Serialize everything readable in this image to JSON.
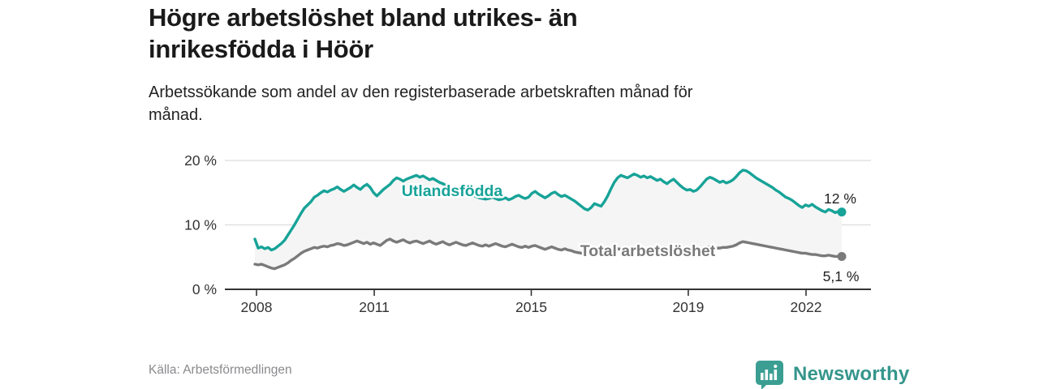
{
  "header": {
    "title_line1": "Högre arbetslöshet bland utrikes- än",
    "title_line2": "inrikesfödda i Höör",
    "subtitle_line1": "Arbetssökande som andel av den registerbaserade arbetskraften månad för",
    "subtitle_line2": "månad."
  },
  "chart_data": {
    "type": "line",
    "title": "Högre arbetslöshet bland utrikes- än inrikesfödda i Höör",
    "subtitle": "Arbetssökande som andel av den registerbaserade arbetskraften månad för månad.",
    "frequency": "monthly",
    "x_start": "2008-01",
    "x_end": "2022-11",
    "x_tick_years": [
      2008,
      2011,
      2015,
      2019,
      2022
    ],
    "x_tick_labels": [
      "2008",
      "2011",
      "2015",
      "2019",
      "2022"
    ],
    "y_ticks": [
      0,
      10,
      20
    ],
    "y_tick_labels": [
      "0 %",
      "10 %",
      "20 %"
    ],
    "ylim": [
      0,
      21
    ],
    "grid": true,
    "legend_position": "inline-labels",
    "fill_between_color": "#f5f5f5",
    "series": [
      {
        "name": "Utlandsfödda",
        "color": "#17a398",
        "end_label": "12 %",
        "values": [
          7.8,
          6.4,
          6.6,
          6.3,
          6.5,
          6.1,
          6.3,
          6.7,
          7.1,
          7.6,
          8.4,
          9.2,
          10.0,
          10.9,
          11.8,
          12.6,
          13.1,
          13.6,
          14.3,
          14.6,
          15.0,
          15.3,
          15.1,
          15.4,
          15.6,
          15.9,
          15.5,
          15.2,
          15.5,
          15.8,
          16.2,
          15.8,
          15.5,
          16.0,
          16.3,
          15.8,
          15.0,
          14.5,
          15.0,
          15.5,
          15.9,
          16.3,
          16.9,
          17.3,
          17.1,
          16.8,
          17.1,
          17.3,
          17.5,
          17.7,
          17.4,
          17.6,
          17.3,
          17.0,
          17.2,
          16.9,
          16.6,
          16.4,
          16.1,
          15.9,
          15.7,
          15.4,
          15.1,
          14.9,
          14.7,
          14.5,
          14.7,
          14.4,
          14.2,
          14.1,
          14.0,
          14.1,
          14.3,
          14.1,
          13.9,
          14.0,
          14.2,
          13.9,
          14.1,
          14.4,
          14.6,
          14.3,
          14.1,
          14.3,
          14.9,
          15.2,
          14.8,
          14.5,
          14.2,
          14.5,
          14.9,
          15.1,
          14.7,
          14.4,
          14.6,
          14.3,
          14.0,
          13.7,
          13.3,
          12.9,
          12.5,
          12.3,
          12.7,
          13.3,
          13.1,
          12.9,
          13.6,
          14.5,
          15.6,
          16.6,
          17.3,
          17.7,
          17.5,
          17.3,
          17.6,
          17.9,
          17.7,
          17.4,
          17.6,
          17.3,
          17.5,
          17.2,
          16.9,
          17.1,
          16.7,
          16.4,
          16.8,
          17.1,
          16.6,
          16.1,
          15.7,
          15.4,
          15.5,
          15.2,
          15.4,
          15.9,
          16.5,
          17.1,
          17.4,
          17.2,
          16.9,
          16.6,
          16.8,
          16.5,
          16.7,
          17.0,
          17.5,
          18.1,
          18.5,
          18.4,
          18.1,
          17.7,
          17.3,
          17.0,
          16.7,
          16.4,
          16.1,
          15.8,
          15.4,
          15.1,
          14.7,
          14.3,
          14.1,
          13.8,
          13.4,
          13.0,
          12.7,
          13.1,
          12.9,
          13.2,
          12.8,
          12.5,
          12.2,
          12.0,
          12.4,
          12.2,
          11.9,
          12.1,
          12.0
        ]
      },
      {
        "name": "Total arbetslöshet",
        "color": "#7a7a7a",
        "end_label": "5,1 %",
        "values": [
          3.9,
          3.8,
          3.9,
          3.7,
          3.5,
          3.3,
          3.2,
          3.4,
          3.6,
          3.8,
          4.1,
          4.5,
          4.8,
          5.2,
          5.6,
          5.9,
          6.1,
          6.3,
          6.5,
          6.4,
          6.6,
          6.7,
          6.6,
          6.8,
          6.9,
          7.1,
          7.0,
          6.8,
          6.9,
          7.1,
          7.3,
          7.5,
          7.3,
          7.1,
          7.3,
          7.0,
          7.2,
          7.0,
          6.8,
          7.2,
          7.6,
          7.8,
          7.5,
          7.3,
          7.5,
          7.7,
          7.4,
          7.2,
          7.4,
          7.5,
          7.3,
          7.1,
          7.3,
          7.5,
          7.2,
          7.0,
          7.2,
          7.4,
          7.1,
          6.9,
          7.1,
          7.3,
          7.1,
          6.9,
          6.8,
          7.0,
          7.2,
          7.0,
          6.8,
          6.7,
          6.9,
          6.7,
          6.9,
          7.1,
          6.9,
          6.7,
          6.6,
          6.8,
          7.0,
          6.8,
          6.6,
          6.5,
          6.7,
          6.5,
          6.7,
          6.8,
          6.6,
          6.4,
          6.2,
          6.4,
          6.6,
          6.4,
          6.2,
          6.1,
          6.3,
          6.1,
          6.0,
          5.8,
          5.7,
          5.6,
          5.5,
          5.7,
          5.9,
          6.0,
          5.8,
          5.7,
          5.9,
          6.1,
          6.0,
          6.2,
          6.3,
          6.2,
          6.1,
          6.3,
          6.4,
          6.3,
          6.2,
          6.1,
          6.2,
          6.1,
          6.2,
          6.3,
          6.2,
          6.1,
          6.0,
          6.1,
          6.3,
          6.2,
          6.0,
          5.9,
          6.0,
          6.1,
          6.2,
          6.1,
          6.2,
          6.3,
          6.4,
          6.5,
          6.6,
          6.5,
          6.4,
          6.4,
          6.5,
          6.5,
          6.6,
          6.7,
          6.9,
          7.2,
          7.4,
          7.3,
          7.2,
          7.1,
          7.0,
          6.9,
          6.8,
          6.7,
          6.6,
          6.5,
          6.4,
          6.3,
          6.2,
          6.1,
          6.0,
          5.9,
          5.8,
          5.7,
          5.6,
          5.6,
          5.5,
          5.4,
          5.4,
          5.3,
          5.2,
          5.2,
          5.3,
          5.2,
          5.1,
          5.1,
          5.1
        ]
      }
    ]
  },
  "footer": {
    "source": "Källa: Arbetsförmedlingen",
    "brand": "Newsworthy"
  },
  "colors": {
    "accent_teal": "#17a398",
    "line_gray": "#7a7a7a",
    "band_fill": "#f5f5f5",
    "gridline": "#dcdcdc",
    "axis": "#333333",
    "tick_text": "#333333",
    "value_label_text": "#222222",
    "logo_teal": "#3b9e92"
  }
}
